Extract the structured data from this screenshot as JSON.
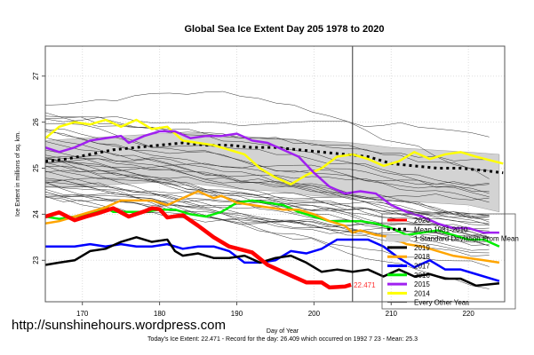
{
  "watermark": "http://sunshinehours.wordpress.com",
  "chart_data": {
    "type": "line",
    "title": "Global Sea Ice Extent Day 205 1978 to 2020",
    "xlabel": "Day of Year",
    "ylabel": "Ice Extent in millions of sq. km.",
    "subtitle": "Today's Ice Extent: 22.471  - Record for the day: 26.409 which occurred on 1992 7 23  - Mean: 25.3",
    "xlim": [
      165.2,
      224.7
    ],
    "ylim": [
      22.1,
      27.65
    ],
    "xticks": [
      170,
      180,
      190,
      200,
      210,
      220
    ],
    "yticks": [
      23,
      24,
      25,
      26,
      27
    ],
    "grid": true,
    "current_day": 205,
    "current_value_label": "22.471",
    "legend_position": "bottom-right",
    "legend": [
      {
        "label": "2020",
        "color": "#ff0000",
        "style": "thick"
      },
      {
        "label": "Mean 1981-2010",
        "color": "#000000",
        "style": "dotted"
      },
      {
        "label": "1 Standard Deviation From Mean",
        "color": "#d3d3d3",
        "style": "band"
      },
      {
        "label": "2019",
        "color": "#000000",
        "style": "thick"
      },
      {
        "label": "2018",
        "color": "#ffa500",
        "style": "thick"
      },
      {
        "label": "2017",
        "color": "#0000ff",
        "style": "thick"
      },
      {
        "label": "2016",
        "color": "#00ee00",
        "style": "thick"
      },
      {
        "label": "2015",
        "color": "#a020f0",
        "style": "thick"
      },
      {
        "label": "2014",
        "color": "#ffff00",
        "style": "thick"
      },
      {
        "label": "Every Other Year",
        "color": "#555555",
        "style": "thin"
      }
    ],
    "band": {
      "x": [
        165.2,
        170,
        175,
        180,
        185,
        190,
        195,
        200,
        205,
        210,
        215,
        220,
        224
      ],
      "upper": [
        25.6,
        25.65,
        25.7,
        25.75,
        25.75,
        25.7,
        25.65,
        25.6,
        25.55,
        25.45,
        25.4,
        25.35,
        25.3
      ],
      "lower": [
        24.6,
        24.6,
        24.65,
        24.7,
        24.65,
        24.55,
        24.5,
        24.4,
        24.35,
        24.3,
        24.25,
        24.2,
        24.05
      ]
    },
    "series": [
      {
        "name": "Mean 1981-2010",
        "color": "#000000",
        "style": "dotted",
        "x": [
          165.2,
          168,
          171,
          174,
          177,
          180,
          183,
          186,
          189,
          192,
          195,
          198,
          201,
          204,
          207,
          210,
          213,
          216,
          219,
          222,
          224.5
        ],
        "y": [
          25.15,
          25.2,
          25.3,
          25.4,
          25.45,
          25.5,
          25.55,
          25.5,
          25.5,
          25.45,
          25.45,
          25.4,
          25.35,
          25.3,
          25.25,
          25.1,
          25.05,
          25.0,
          25.0,
          24.95,
          24.9
        ]
      },
      {
        "name": "2014",
        "color": "#ffff00",
        "style": "thick",
        "x": [
          165.2,
          167,
          169,
          171,
          173,
          175,
          177,
          179,
          181,
          183,
          185,
          187,
          189,
          191,
          193,
          195,
          197,
          199,
          201,
          203,
          205,
          207,
          209,
          211,
          213,
          215,
          217,
          219,
          221,
          224.5
        ],
        "y": [
          25.65,
          25.9,
          26.0,
          25.95,
          26.05,
          25.9,
          26.05,
          25.85,
          25.9,
          25.6,
          25.55,
          25.5,
          25.4,
          25.3,
          25.0,
          24.8,
          24.65,
          24.85,
          25.0,
          25.25,
          25.3,
          25.2,
          25.05,
          25.15,
          25.35,
          25.2,
          25.3,
          25.35,
          25.25,
          25.1
        ]
      },
      {
        "name": "2015",
        "color": "#a020f0",
        "style": "thick",
        "x": [
          165.2,
          167,
          169,
          171,
          173,
          175,
          176,
          178,
          180,
          182,
          184,
          186,
          188,
          190,
          192,
          194,
          196,
          198,
          200,
          202,
          204,
          206,
          208,
          210,
          212,
          214,
          216,
          218,
          220,
          222,
          224
        ],
        "y": [
          25.45,
          25.35,
          25.45,
          25.6,
          25.65,
          25.7,
          25.55,
          25.7,
          25.8,
          25.8,
          25.65,
          25.7,
          25.7,
          25.75,
          25.6,
          25.55,
          25.4,
          25.25,
          24.9,
          24.6,
          24.45,
          24.5,
          24.45,
          24.2,
          24.05,
          23.95,
          23.8,
          23.7,
          23.7,
          23.6,
          23.6
        ]
      },
      {
        "name": "2016",
        "color": "#00ee00",
        "style": "thick",
        "x": [
          165.2,
          167,
          169,
          171,
          173,
          174,
          176,
          178,
          180,
          182,
          184,
          186,
          188,
          190,
          192,
          194,
          196,
          198,
          200,
          202,
          204,
          206,
          208,
          210,
          212,
          214,
          216,
          218,
          220,
          222,
          224
        ],
        "y": [
          23.95,
          23.9,
          23.95,
          24.0,
          24.15,
          24.05,
          24.05,
          24.05,
          24.1,
          24.1,
          24.0,
          23.95,
          24.05,
          24.25,
          24.3,
          24.25,
          24.2,
          24.05,
          23.95,
          23.85,
          23.85,
          23.85,
          23.8,
          23.7,
          23.55,
          23.6,
          23.65,
          23.55,
          23.45,
          23.45,
          23.3
        ]
      },
      {
        "name": "2018",
        "color": "#ffa500",
        "style": "thick",
        "x": [
          165.2,
          167,
          169,
          171,
          173,
          175,
          177,
          179,
          181,
          183,
          185,
          187,
          188,
          190,
          192,
          194,
          196,
          198,
          200,
          202,
          204,
          205,
          206,
          208,
          210,
          212,
          214,
          216,
          218,
          220,
          222,
          224
        ],
        "y": [
          23.8,
          23.85,
          23.95,
          24.05,
          24.15,
          24.3,
          24.3,
          24.3,
          24.2,
          24.35,
          24.5,
          24.35,
          24.4,
          24.25,
          24.2,
          24.15,
          24.1,
          24.1,
          24.0,
          23.85,
          23.75,
          23.6,
          23.65,
          23.55,
          23.5,
          23.35,
          23.3,
          23.2,
          23.1,
          23.05,
          23.0,
          22.95
        ]
      },
      {
        "name": "2017",
        "color": "#0000ff",
        "style": "thick",
        "x": [
          165.2,
          167,
          169,
          171,
          173,
          175,
          177,
          179,
          181,
          183,
          185,
          187,
          189,
          191,
          193,
          195,
          197,
          199,
          201,
          203,
          205,
          207,
          209,
          211,
          213,
          215,
          217,
          219,
          221,
          224
        ],
        "y": [
          23.3,
          23.3,
          23.3,
          23.35,
          23.3,
          23.35,
          23.3,
          23.3,
          23.35,
          23.25,
          23.3,
          23.3,
          23.2,
          22.95,
          22.95,
          23.0,
          23.2,
          23.15,
          23.25,
          23.45,
          23.45,
          23.45,
          23.3,
          23.05,
          22.85,
          23.0,
          22.8,
          22.8,
          22.7,
          22.55
        ]
      },
      {
        "name": "2019",
        "color": "#000000",
        "style": "thick",
        "x": [
          165.2,
          167,
          169,
          171,
          173,
          175,
          177,
          179,
          181,
          182,
          183,
          185,
          187,
          189,
          191,
          193,
          195,
          197,
          199,
          201,
          203,
          205,
          207,
          209,
          211,
          213,
          215,
          217,
          219,
          221,
          224
        ],
        "y": [
          22.9,
          22.95,
          23.0,
          23.2,
          23.25,
          23.4,
          23.5,
          23.4,
          23.45,
          23.2,
          23.1,
          23.15,
          23.05,
          23.05,
          23.1,
          22.95,
          23.05,
          23.1,
          22.95,
          22.75,
          22.8,
          22.75,
          22.8,
          22.65,
          22.8,
          22.65,
          22.7,
          22.6,
          22.6,
          22.45,
          22.5
        ]
      },
      {
        "name": "2020",
        "color": "#ff0000",
        "style": "thick",
        "x": [
          165.2,
          167,
          169,
          170.5,
          172,
          174,
          176,
          178,
          179,
          180,
          181,
          183,
          185,
          187,
          189,
          192,
          194,
          197,
          199,
          201,
          202,
          204,
          204.8
        ],
        "y": [
          23.95,
          24.04,
          23.87,
          23.95,
          24.02,
          24.13,
          23.95,
          24.06,
          24.13,
          24.11,
          23.93,
          23.98,
          23.75,
          23.5,
          23.3,
          23.17,
          22.9,
          22.67,
          22.52,
          22.52,
          22.41,
          22.43,
          22.47
        ]
      }
    ]
  }
}
